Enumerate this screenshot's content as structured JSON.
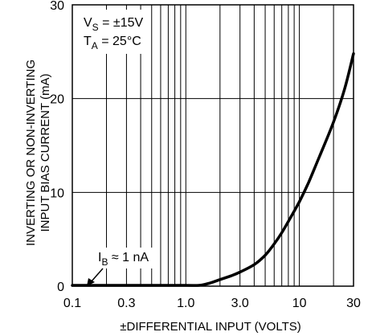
{
  "chart_data": {
    "type": "line",
    "xscale": "log",
    "xlim": [
      0.1,
      30
    ],
    "ylim": [
      0,
      30
    ],
    "xticks": [
      0.1,
      0.3,
      1.0,
      3.0,
      10,
      30
    ],
    "xtick_labels": [
      "0.1",
      "0.3",
      "1.0",
      "3.0",
      "10",
      "30"
    ],
    "yticks": [
      0,
      10,
      20,
      30
    ],
    "ytick_labels": [
      "0",
      "10",
      "20",
      "30"
    ],
    "xlabel": "±DIFFERENTIAL INPUT (VOLTS)",
    "ylabel_line1": "INVERTING OR NON-INVERTING",
    "ylabel_line2": "INPUT BIAS CURRENT (mA)",
    "grid": true,
    "legend": {
      "line1": {
        "main": "V",
        "sub": "S",
        "rest": " = ±15V"
      },
      "line2": {
        "main": "T",
        "sub": "A",
        "rest": " = 25°C"
      }
    },
    "annotation": {
      "main": "I",
      "sub": "B",
      "rest": " ≈ 1 nA"
    },
    "series": [
      {
        "x": [
          0.1,
          0.5,
          1.0,
          1.3,
          1.6,
          2.0,
          2.5,
          3.0,
          4.0,
          5.0,
          6.0,
          7.0,
          8.0,
          10,
          12,
          15,
          20,
          25,
          30
        ],
        "y": [
          0,
          0,
          0,
          0.05,
          0.3,
          0.7,
          1.1,
          1.5,
          2.3,
          3.3,
          4.5,
          5.7,
          6.9,
          9.0,
          11.0,
          13.8,
          17.5,
          21.0,
          24.8
        ]
      }
    ]
  }
}
